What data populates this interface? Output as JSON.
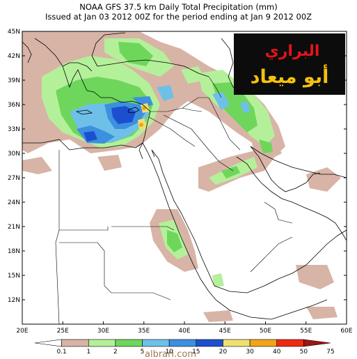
{
  "title_line1": "NOAA GFS 37.5 km Daily Total Precipitation (mm)",
  "title_line2": "Issued at Jan 03 2012 00Z for the period ending at Jan 9 2012 00Z",
  "lat_labels": [
    "45N",
    "42N",
    "39N",
    "36N",
    "33N",
    "30N",
    "27N",
    "24N",
    "21N",
    "18N",
    "15N",
    "12N"
  ],
  "lon_labels": [
    "20E",
    "25E",
    "30E",
    "35E",
    "40E",
    "45E",
    "50E",
    "55E",
    "60E"
  ],
  "lat_values": [
    45,
    42,
    39,
    36,
    33,
    30,
    27,
    24,
    21,
    18,
    15,
    12
  ],
  "lon_values": [
    20,
    25,
    30,
    35,
    40,
    45,
    50,
    55,
    60
  ],
  "colorbar": {
    "labels": [
      "0.1",
      "1",
      "2",
      "5",
      "10",
      "15",
      "20",
      "30",
      "40",
      "50",
      "75"
    ],
    "colors": [
      "#ffffff",
      "#d8b4a6",
      "#b4f09a",
      "#6fd65c",
      "#6fc0e8",
      "#3d8fe0",
      "#1c4fd0",
      "#f0e070",
      "#f0a418",
      "#ee2a10",
      "#9c1414"
    ]
  },
  "logo": {
    "line1": "البراري",
    "line2": "أبو ميعاد"
  },
  "watermark": "albrari.com",
  "colors": {
    "land": "#ffffff",
    "sea": "#ffffff",
    "coast": "#000000"
  }
}
